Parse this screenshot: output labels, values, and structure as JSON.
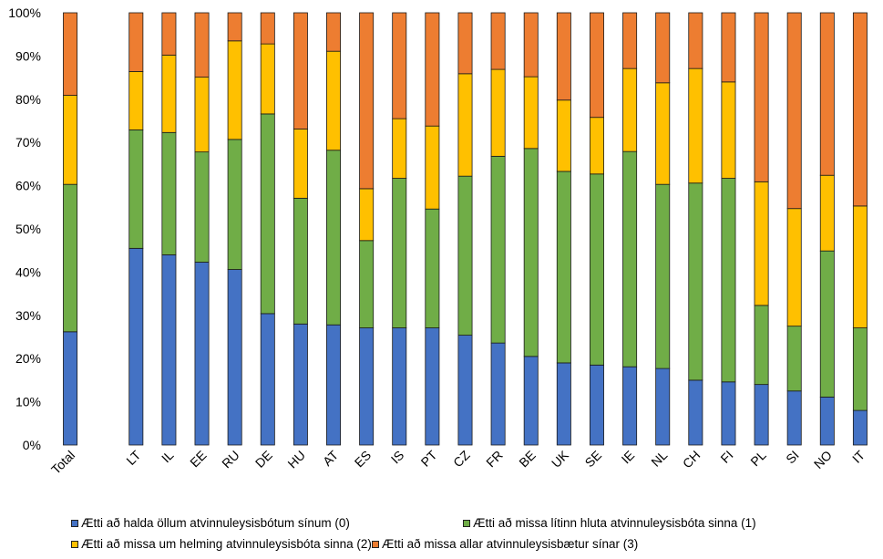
{
  "chart_data": {
    "type": "bar",
    "stacked": true,
    "percent": true,
    "categories": [
      "Total",
      "",
      "LT",
      "IL",
      "EE",
      "RU",
      "DE",
      "HU",
      "AT",
      "ES",
      "IS",
      "PT",
      "CZ",
      "FR",
      "BE",
      "UK",
      "SE",
      "IE",
      "NL",
      "CH",
      "FI",
      "PL",
      "SI",
      "NO",
      "IT"
    ],
    "series": [
      {
        "name": "Ætti að halda öllum atvinnuleysisbótum sínum (0)",
        "color": "#4472C4",
        "values": [
          26.2,
          null,
          45.5,
          44.0,
          42.3,
          40.6,
          30.4,
          28.0,
          27.8,
          27.1,
          27.1,
          27.1,
          25.4,
          23.6,
          20.5,
          19.0,
          18.5,
          18.1,
          17.7,
          15.0,
          14.6,
          14.0,
          12.5,
          11.1,
          8.0
        ]
      },
      {
        "name": "Ætti að missa lítinn hluta atvinnuleysisbóta sinna (1)",
        "color": "#70AD47",
        "values": [
          34.1,
          null,
          27.4,
          28.3,
          25.5,
          30.1,
          46.2,
          29.1,
          40.4,
          20.2,
          34.6,
          27.5,
          36.8,
          43.2,
          48.1,
          44.3,
          44.2,
          49.8,
          42.6,
          45.6,
          47.1,
          18.3,
          15.0,
          33.8,
          19.1
        ]
      },
      {
        "name": "Ætti að missa um helming atvinnuleysisbóta sinna (2)",
        "color": "#FFC000",
        "values": [
          20.6,
          null,
          13.5,
          17.9,
          17.3,
          22.8,
          16.2,
          16.0,
          22.9,
          12.0,
          13.8,
          19.2,
          23.7,
          20.1,
          16.6,
          16.5,
          13.1,
          19.2,
          23.5,
          26.5,
          22.3,
          28.6,
          27.2,
          17.5,
          28.2
        ]
      },
      {
        "name": "Ætti að missa allar atvinnuleysisbætur sínar (3)",
        "color": "#ED7D31",
        "values": [
          19.1,
          null,
          13.6,
          9.8,
          14.9,
          6.5,
          7.2,
          26.9,
          8.9,
          40.7,
          24.5,
          26.2,
          14.1,
          13.1,
          14.8,
          20.2,
          24.2,
          12.9,
          16.2,
          12.9,
          16.0,
          39.1,
          45.3,
          37.6,
          44.7
        ]
      }
    ],
    "y_ticks": [
      "0%",
      "10%",
      "20%",
      "30%",
      "40%",
      "50%",
      "60%",
      "70%",
      "80%",
      "90%",
      "100%"
    ],
    "ylim": [
      0,
      100
    ],
    "grid": false,
    "legend_position": "bottom"
  }
}
